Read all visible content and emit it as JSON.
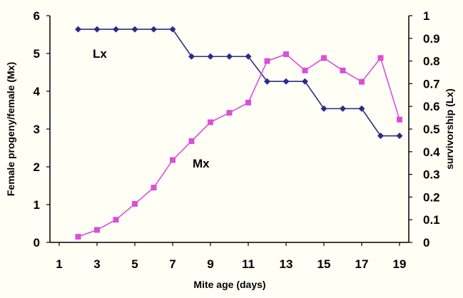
{
  "chart_data": {
    "type": "line",
    "xlabel": "Mite age (days)",
    "ylabel_left": "Female progeny/female (Mx)",
    "ylabel_right": "survivorship (Lx)",
    "x_ticks": [
      1,
      3,
      5,
      7,
      9,
      11,
      13,
      15,
      17,
      19
    ],
    "xlim": [
      1,
      19
    ],
    "ylim_left": [
      0,
      6
    ],
    "ylim_right": [
      0,
      1
    ],
    "y_ticks_left": [
      "0",
      "1",
      "2",
      "3",
      "4",
      "5",
      "6"
    ],
    "y_ticks_right": [
      "0",
      "0.1",
      "0.2",
      "0.3",
      "0.4",
      "0.5",
      "0.6",
      "0.7",
      "0.8",
      "0.9",
      "1"
    ],
    "grid": false,
    "series": [
      {
        "name": "Lx",
        "axis": "right",
        "color": "#2b2b8c",
        "marker": "diamond",
        "x": [
          2,
          3,
          4,
          5,
          6,
          7,
          8,
          9,
          10,
          11,
          12,
          13,
          14,
          15,
          16,
          17,
          18,
          19
        ],
        "values": [
          0.94,
          0.94,
          0.94,
          0.94,
          0.94,
          0.94,
          0.82,
          0.82,
          0.82,
          0.82,
          0.71,
          0.71,
          0.71,
          0.59,
          0.59,
          0.59,
          0.47,
          0.47
        ]
      },
      {
        "name": "Mx",
        "axis": "left",
        "color": "#d94fd9",
        "marker": "square",
        "x": [
          2,
          3,
          4,
          5,
          6,
          7,
          8,
          9,
          10,
          11,
          12,
          13,
          14,
          15,
          16,
          17,
          18,
          19
        ],
        "values": [
          0.15,
          0.33,
          0.6,
          1.02,
          1.45,
          2.18,
          2.68,
          3.18,
          3.43,
          3.7,
          4.8,
          4.98,
          4.55,
          4.88,
          4.55,
          4.25,
          4.88,
          3.25
        ]
      }
    ]
  }
}
